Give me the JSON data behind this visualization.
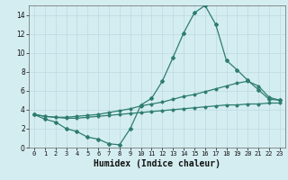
{
  "xlabel": "Humidex (Indice chaleur)",
  "background_color": "#d4edf1",
  "grid_color": "#c0dde3",
  "line_color": "#2e7d6e",
  "xlim": [
    -0.5,
    23.5
  ],
  "ylim": [
    0,
    15
  ],
  "xticks": [
    0,
    1,
    2,
    3,
    4,
    5,
    6,
    7,
    8,
    9,
    10,
    11,
    12,
    13,
    14,
    15,
    16,
    17,
    18,
    19,
    20,
    21,
    22,
    23
  ],
  "yticks": [
    0,
    2,
    4,
    6,
    8,
    10,
    12,
    14
  ],
  "line1_x": [
    0,
    1,
    2,
    3,
    4,
    5,
    6,
    7,
    8,
    9,
    10,
    11,
    12,
    13,
    14,
    15,
    16,
    17,
    18,
    19,
    20,
    21,
    22,
    23
  ],
  "line1_y": [
    3.5,
    3.0,
    2.7,
    2.0,
    1.7,
    1.1,
    0.9,
    0.4,
    0.3,
    2.0,
    4.5,
    5.2,
    7.0,
    9.5,
    12.1,
    14.2,
    15.0,
    13.0,
    9.2,
    8.2,
    7.1,
    6.1,
    5.1,
    5.0
  ],
  "line2_x": [
    0,
    1,
    2,
    3,
    4,
    5,
    6,
    7,
    8,
    9,
    10,
    11,
    12,
    13,
    14,
    15,
    16,
    17,
    18,
    19,
    20,
    21,
    22,
    23
  ],
  "line2_y": [
    3.5,
    3.3,
    3.2,
    3.2,
    3.3,
    3.4,
    3.5,
    3.7,
    3.9,
    4.1,
    4.4,
    4.6,
    4.8,
    5.1,
    5.4,
    5.6,
    5.9,
    6.2,
    6.5,
    6.8,
    7.0,
    6.5,
    5.3,
    5.0
  ],
  "line3_x": [
    0,
    1,
    2,
    3,
    4,
    5,
    6,
    7,
    8,
    9,
    10,
    11,
    12,
    13,
    14,
    15,
    16,
    17,
    18,
    19,
    20,
    21,
    22,
    23
  ],
  "line3_y": [
    3.5,
    3.3,
    3.2,
    3.1,
    3.1,
    3.2,
    3.3,
    3.4,
    3.5,
    3.6,
    3.7,
    3.8,
    3.9,
    4.0,
    4.1,
    4.2,
    4.3,
    4.4,
    4.5,
    4.5,
    4.6,
    4.6,
    4.7,
    4.7
  ]
}
